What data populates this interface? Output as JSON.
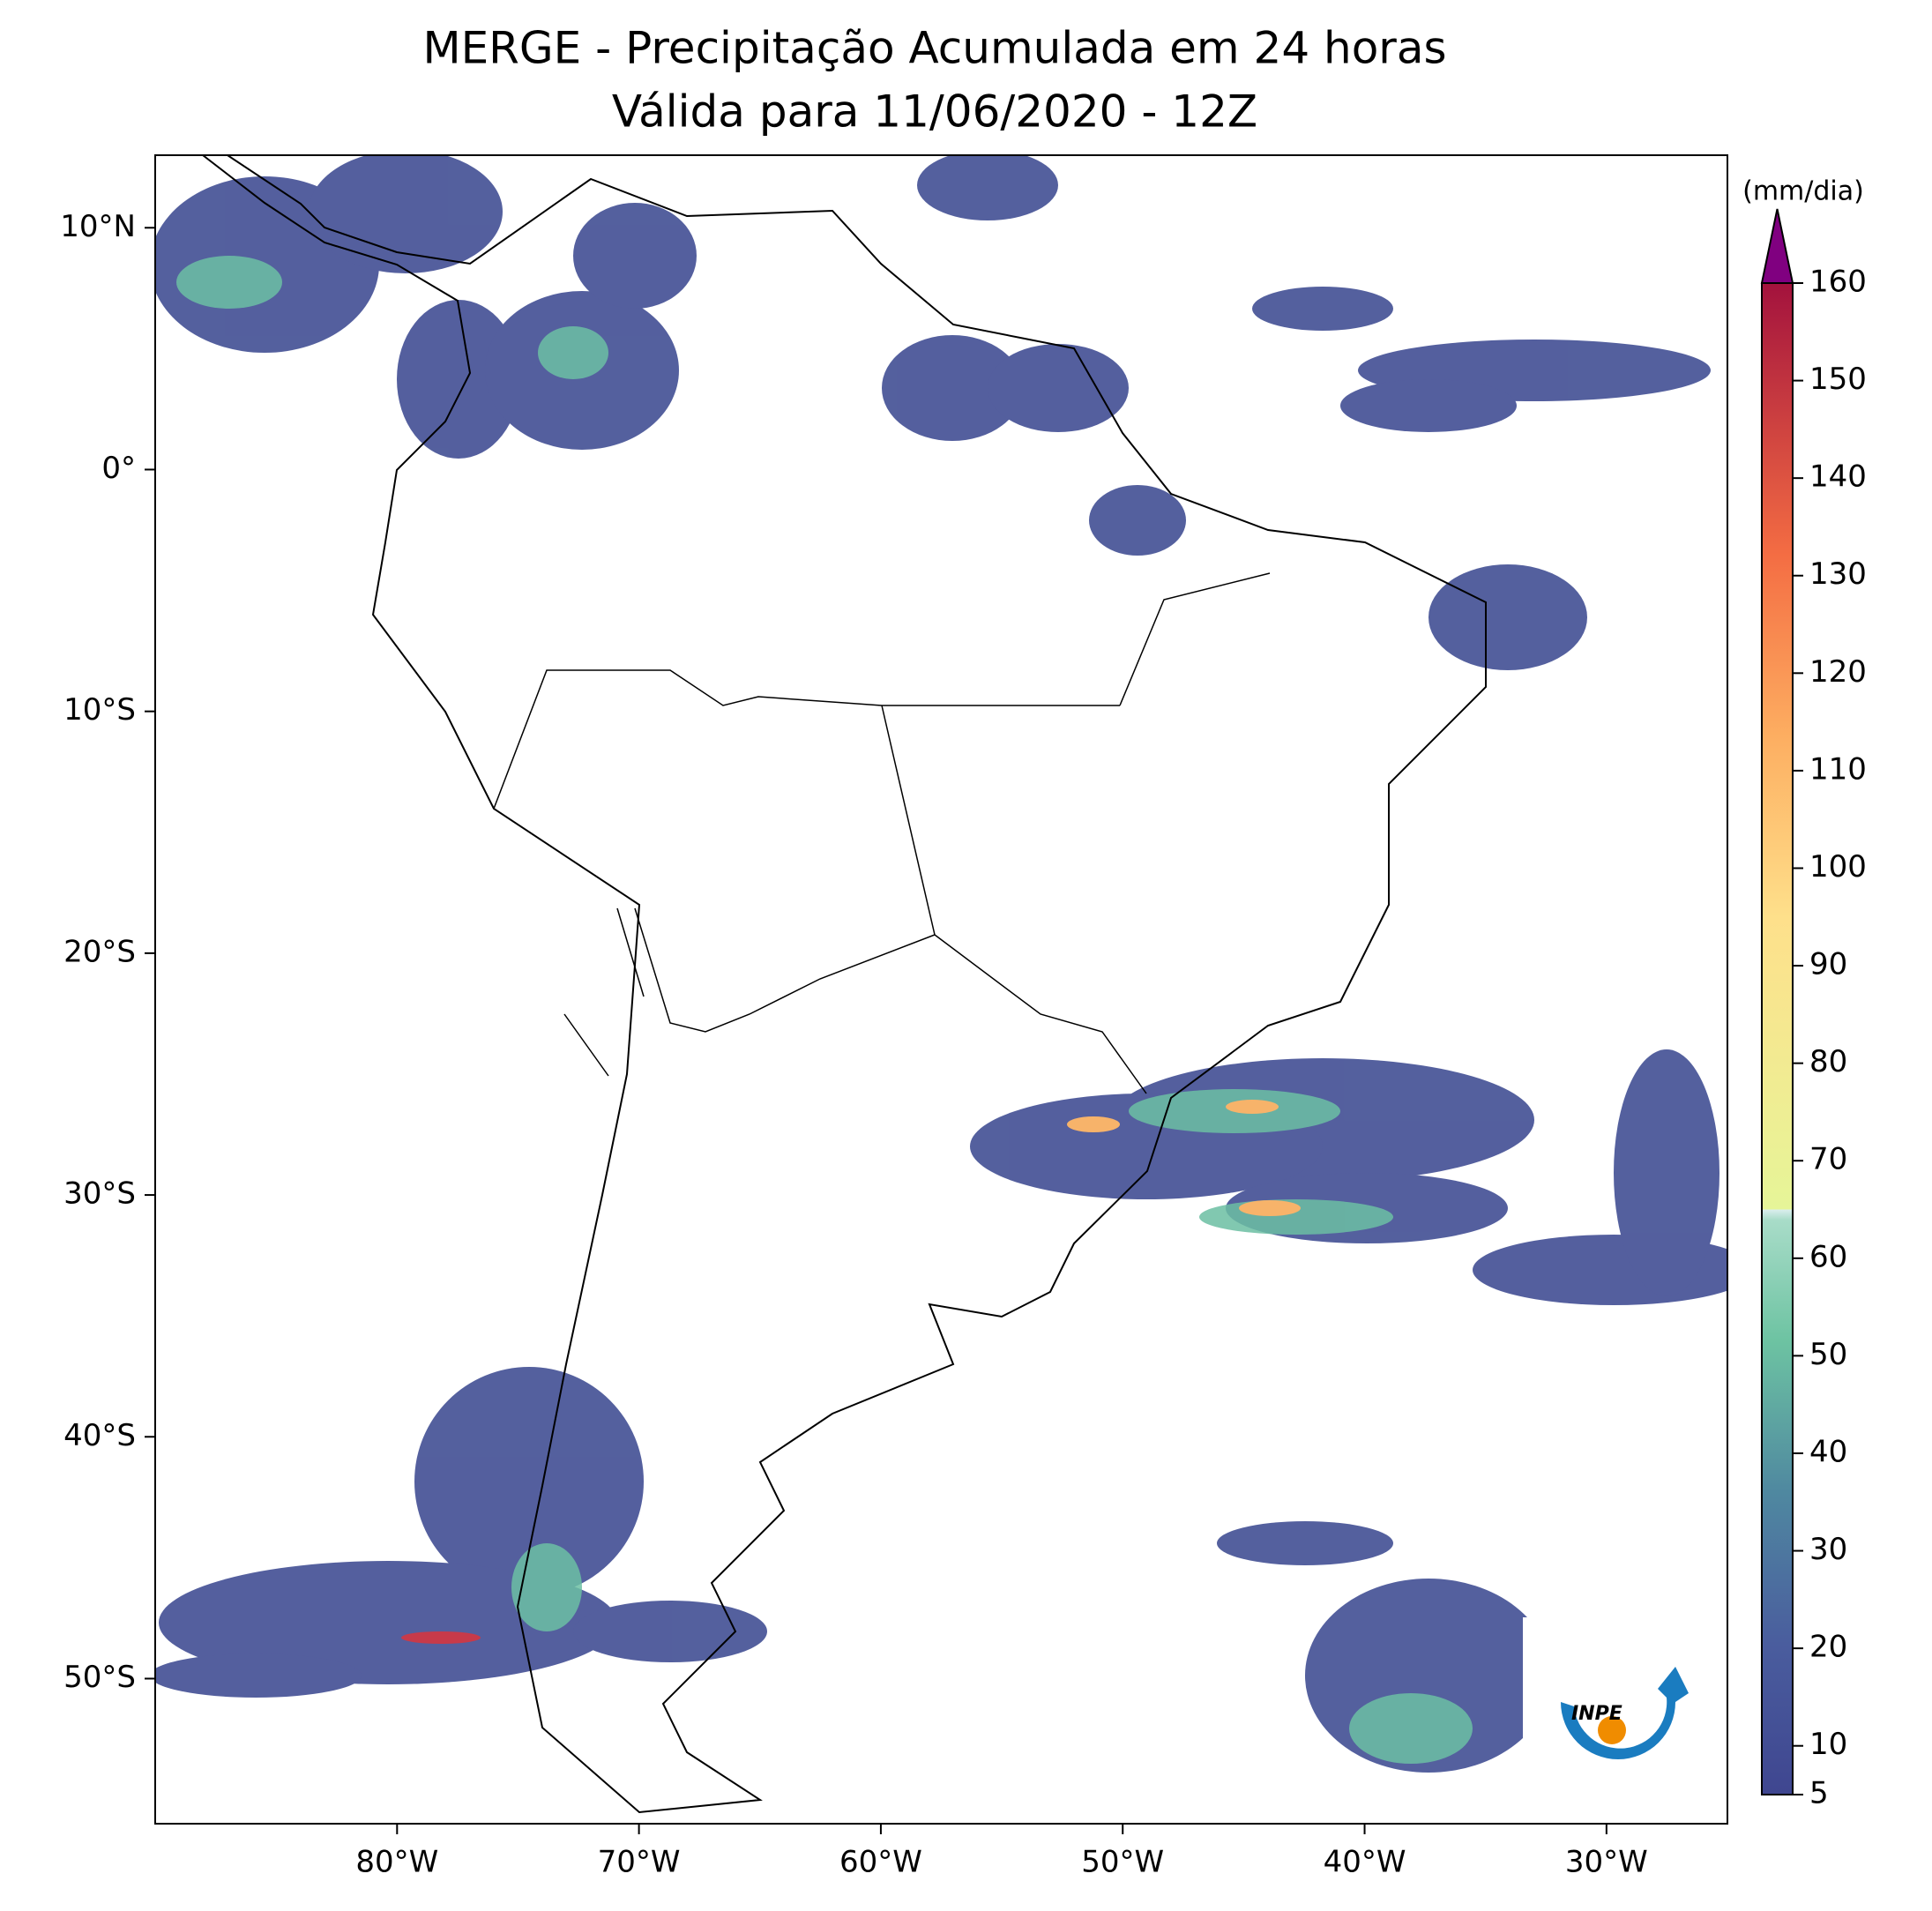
{
  "title": "MERGE - Precipitação Acumulada em 24 horas",
  "subtitle": "Válida para 11/06/2020 - 12Z",
  "map": {
    "xlim": [
      -90,
      -25
    ],
    "ylim": [
      -56,
      13
    ],
    "xticks": [
      {
        "value": -80,
        "label": "80°W"
      },
      {
        "value": -70,
        "label": "70°W"
      },
      {
        "value": -60,
        "label": "60°W"
      },
      {
        "value": -50,
        "label": "50°W"
      },
      {
        "value": -40,
        "label": "40°W"
      },
      {
        "value": -30,
        "label": "30°W"
      }
    ],
    "yticks": [
      {
        "value": 10,
        "label": "10°N"
      },
      {
        "value": 0,
        "label": "0°"
      },
      {
        "value": -10,
        "label": "10°S"
      },
      {
        "value": -20,
        "label": "20°S"
      },
      {
        "value": -30,
        "label": "30°S"
      },
      {
        "value": -40,
        "label": "40°S"
      },
      {
        "value": -50,
        "label": "50°S"
      }
    ]
  },
  "colorbar": {
    "label": "(mm/dia)",
    "lim": [
      5,
      160
    ],
    "ticks": [
      5,
      10,
      20,
      30,
      40,
      50,
      60,
      70,
      80,
      90,
      100,
      110,
      120,
      130,
      140,
      150,
      160
    ]
  },
  "logo": "INPE"
}
